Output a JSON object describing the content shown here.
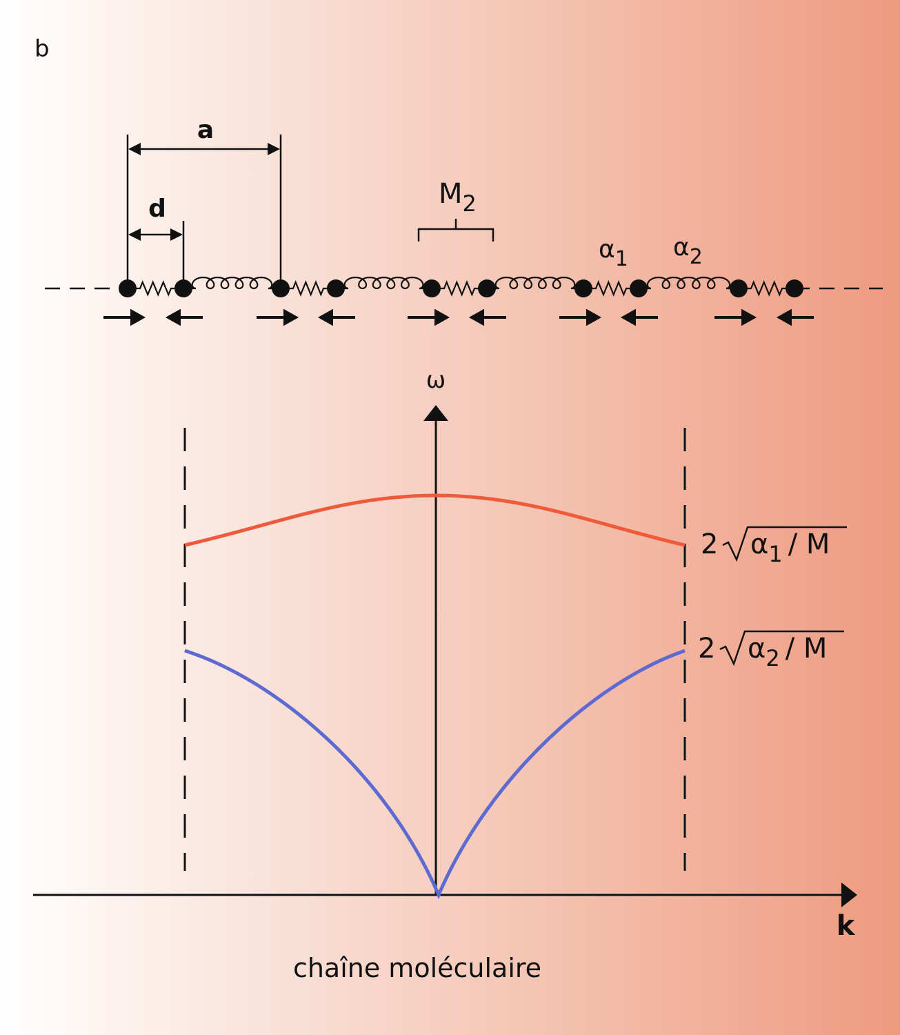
{
  "panel_label": "b",
  "chain": {
    "spacing_label": "a",
    "offset_label": "d",
    "mass_label": {
      "base": "M",
      "sub": "2"
    },
    "spring1_label": {
      "base": "α",
      "sub": "1"
    },
    "spring2_label": {
      "base": "α",
      "sub": "2"
    }
  },
  "graph": {
    "y_axis_label": "ω",
    "x_axis_label": "k",
    "upper_label": {
      "coef": "2",
      "base": "α",
      "sub": "1",
      "rest": "/ M"
    },
    "lower_label": {
      "coef": "2",
      "base": "α",
      "sub": "2",
      "rest": "/ M"
    }
  },
  "caption": "chaîne moléculaire"
}
